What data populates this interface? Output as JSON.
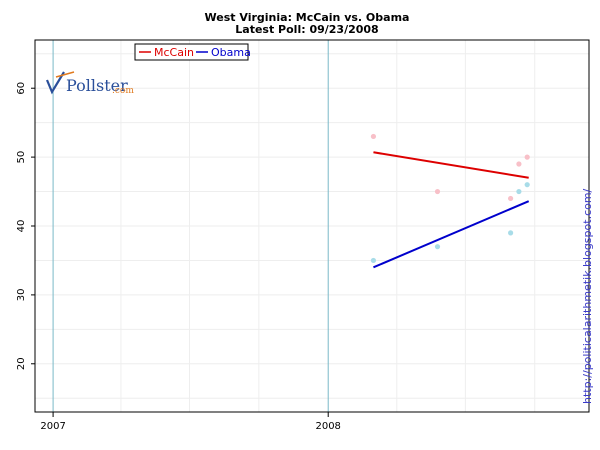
{
  "chart_data": {
    "type": "scatter",
    "title": "West Virginia: McCain vs. Obama",
    "subtitle": "Latest Poll: 09/23/2008",
    "xlabel": "",
    "ylabel": "",
    "x_range": [
      "2006-12-08",
      "2008-12-12"
    ],
    "x_ticks": [
      {
        "date": "2007-01-01",
        "label": "2007"
      },
      {
        "date": "2008-01-01",
        "label": "2008"
      }
    ],
    "ylim": [
      13,
      67
    ],
    "y_ticks": [
      20,
      30,
      40,
      50,
      60
    ],
    "grid": true,
    "legend": "top-left",
    "series": [
      {
        "name": "McCain",
        "color": "#dd0000",
        "point_color": "#f8c0c8",
        "points": [
          {
            "x": "2008-03-01",
            "y": 53
          },
          {
            "x": "2008-05-25",
            "y": 45
          },
          {
            "x": "2008-08-30",
            "y": 44
          },
          {
            "x": "2008-09-10",
            "y": 49
          },
          {
            "x": "2008-09-21",
            "y": 50
          }
        ],
        "trend": [
          {
            "x": "2008-03-01",
            "y": 50.7
          },
          {
            "x": "2008-09-23",
            "y": 47.0
          }
        ]
      },
      {
        "name": "Obama",
        "color": "#0000cc",
        "point_color": "#a8dce8",
        "points": [
          {
            "x": "2008-03-01",
            "y": 35
          },
          {
            "x": "2008-05-25",
            "y": 37
          },
          {
            "x": "2008-08-30",
            "y": 39
          },
          {
            "x": "2008-09-10",
            "y": 45
          },
          {
            "x": "2008-09-21",
            "y": 46
          }
        ],
        "trend": [
          {
            "x": "2008-03-01",
            "y": 34.0
          },
          {
            "x": "2008-09-23",
            "y": 43.6
          }
        ]
      }
    ]
  },
  "logo": {
    "text": "Pollster",
    "suffix": ".com"
  },
  "side_text": "http://politicalarithmetik.blogspot.com/"
}
